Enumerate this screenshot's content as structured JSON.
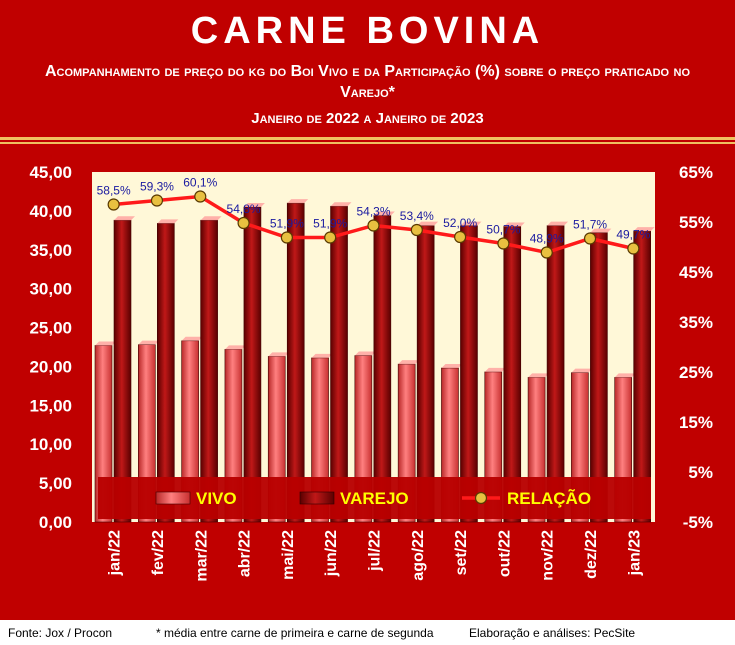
{
  "header": {
    "title": "CARNE BOVINA",
    "subtitle": "Acompanhamento de preço do kg do Boi Vivo e da Participação (%) sobre o preço praticado no Varejo*",
    "period": "Janeiro de 2022 a Janeiro de 2023"
  },
  "footer": {
    "source": "Fonte: Jox / Procon",
    "note": "* média entre carne de primeira e carne de segunda",
    "credit": "Elaboração e análises: PecSite"
  },
  "colors": {
    "background": "#c00000",
    "plot_area": "#fff8d8",
    "vivo": "#e55050",
    "varejo": "#8b0000",
    "relacao_line": "#ff1a1a",
    "relacao_marker": "#e8c040",
    "data_label": "#1a1aa0",
    "legend_text": "#ffff00"
  },
  "chart_data": {
    "type": "bar",
    "categories": [
      "jan/22",
      "fev/22",
      "mar/22",
      "abr/22",
      "mai/22",
      "jun/22",
      "jul/22",
      "ago/22",
      "set/22",
      "out/22",
      "nov/22",
      "dez/22",
      "jan/23"
    ],
    "series": [
      {
        "name": "VIVO",
        "type": "bar",
        "axis": "left",
        "values": [
          22.7,
          22.8,
          23.3,
          22.2,
          21.3,
          21.1,
          21.4,
          20.3,
          19.8,
          19.3,
          18.6,
          19.2,
          18.6
        ]
      },
      {
        "name": "VAREJO",
        "type": "bar",
        "axis": "left",
        "values": [
          38.8,
          38.4,
          38.8,
          40.5,
          41.0,
          40.6,
          39.4,
          38.1,
          38.1,
          38.0,
          38.1,
          37.2,
          37.4
        ]
      },
      {
        "name": "RELAÇÃO",
        "type": "line",
        "axis": "right",
        "values": [
          58.5,
          59.3,
          60.1,
          54.8,
          51.9,
          51.9,
          54.3,
          53.4,
          52.0,
          50.7,
          48.9,
          51.7,
          49.7
        ],
        "labels": [
          "58,5%",
          "59,3%",
          "60,1%",
          "54,8%",
          "51,9%",
          "51,9%",
          "54,3%",
          "53,4%",
          "52,0%",
          "50,7%",
          "48,9%",
          "51,7%",
          "49,7%"
        ]
      }
    ],
    "y_left": {
      "min": 0,
      "max": 45,
      "tick_labels": [
        "0,00",
        "5,00",
        "10,00",
        "15,00",
        "20,00",
        "25,00",
        "30,00",
        "35,00",
        "40,00",
        "45,00"
      ]
    },
    "y_right": {
      "min": -5,
      "max": 65,
      "tick_labels": [
        "-5%",
        "5%",
        "15%",
        "25%",
        "35%",
        "45%",
        "55%",
        "65%"
      ]
    },
    "legend_position": "bottom-inside",
    "grid": false
  }
}
